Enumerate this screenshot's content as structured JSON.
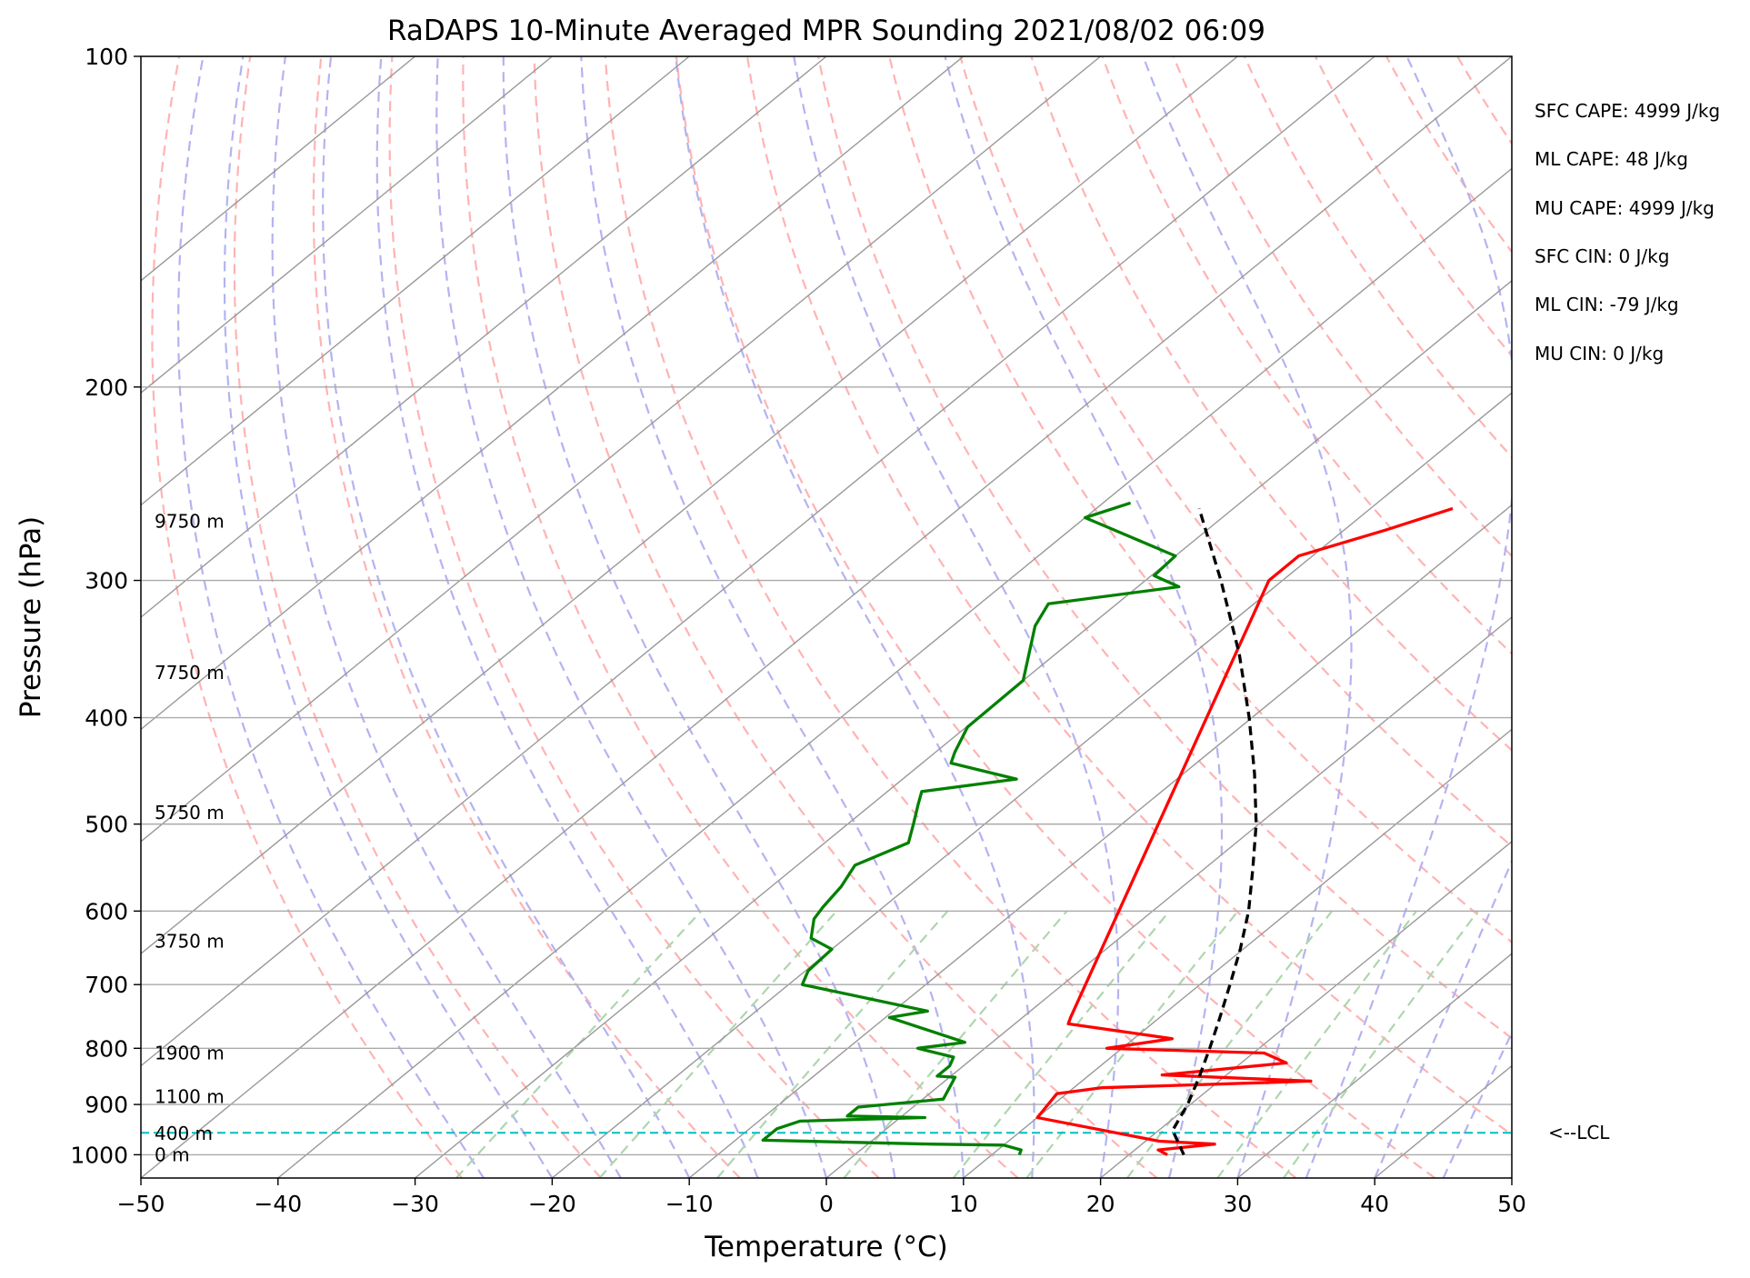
{
  "chart_data": {
    "type": "skew-t",
    "title": "RaDAPS 10-Minute Averaged MPR Sounding 2021/08/02 06:09",
    "xlabel": "Temperature (°C)",
    "ylabel": "Pressure (hPa)",
    "xlim": [
      -50,
      50
    ],
    "ylim": [
      1050,
      100
    ],
    "y_scale": "log",
    "grid": true,
    "x_ticks": [
      -50,
      -40,
      -30,
      -20,
      -10,
      0,
      10,
      20,
      30,
      40,
      50
    ],
    "x_tick_labels": [
      "−50",
      "−40",
      "−30",
      "−20",
      "−10",
      "0",
      "10",
      "20",
      "30",
      "40",
      "50"
    ],
    "y_ticks": [
      1000,
      900,
      800,
      700,
      600,
      500,
      400,
      300,
      200,
      100
    ],
    "y_tick_labels": [
      "1000",
      "900",
      "800",
      "700",
      "600",
      "500",
      "400",
      "300",
      "200",
      "100"
    ],
    "series": [
      {
        "color": "#ff0000",
        "points": [
          [
            1000,
            22.8
          ],
          [
            990,
            21.7
          ],
          [
            978,
            25.3
          ],
          [
            972,
            21.0
          ],
          [
            925,
            10.0
          ],
          [
            880,
            9.3
          ],
          [
            869,
            12.0
          ],
          [
            857,
            26.7
          ],
          [
            846,
            15.3
          ],
          [
            825,
            23.3
          ],
          [
            808,
            20.8
          ],
          [
            800,
            8.9
          ],
          [
            784,
            12.8
          ],
          [
            760,
            3.9
          ],
          [
            750,
            3.5
          ],
          [
            300,
            -21.0
          ],
          [
            285,
            -21.0
          ],
          [
            270,
            -17.0
          ],
          [
            258,
            -14.0
          ]
        ]
      },
      {
        "color": "#008000",
        "points": [
          [
            1000,
            12.0
          ],
          [
            990,
            11.7
          ],
          [
            980,
            10.0
          ],
          [
            978,
            4.6
          ],
          [
            970,
            -8.0
          ],
          [
            962,
            -8.0
          ],
          [
            947,
            -8.0
          ],
          [
            932,
            -7.0
          ],
          [
            925,
            1.8
          ],
          [
            922,
            -4.0
          ],
          [
            905,
            -4.0
          ],
          [
            890,
            1.5
          ],
          [
            850,
            0.4
          ],
          [
            848,
            -1.0
          ],
          [
            830,
            -1.0
          ],
          [
            815,
            -1.5
          ],
          [
            800,
            -4.9
          ],
          [
            790,
            -2.0
          ],
          [
            750,
            -9.7
          ],
          [
            740,
            -7.5
          ],
          [
            700,
            -19.0
          ],
          [
            680,
            -19.8
          ],
          [
            650,
            -20.0
          ],
          [
            635,
            -22.5
          ],
          [
            610,
            -24.0
          ],
          [
            595,
            -24.4
          ],
          [
            570,
            -24.9
          ],
          [
            545,
            -25.8
          ],
          [
            520,
            -23.9
          ],
          [
            500,
            -25.2
          ],
          [
            480,
            -26.6
          ],
          [
            467,
            -27.5
          ],
          [
            455,
            -21.7
          ],
          [
            440,
            -27.9
          ],
          [
            430,
            -28.6
          ],
          [
            408,
            -29.9
          ],
          [
            370,
            -30.0
          ],
          [
            330,
            -34.0
          ],
          [
            315,
            -35.0
          ],
          [
            304,
            -27.0
          ],
          [
            297,
            -29.8
          ],
          [
            285,
            -30.0
          ],
          [
            263,
            -40.0
          ],
          [
            255,
            -38.0
          ]
        ]
      },
      {
        "color": "#000000",
        "style": "dashed",
        "points": [
          [
            1000,
            24.0
          ],
          [
            950,
            21.0
          ],
          [
            900,
            19.8
          ],
          [
            850,
            18.2
          ],
          [
            800,
            16.4
          ],
          [
            750,
            14.4
          ],
          [
            700,
            12.2
          ],
          [
            650,
            9.8
          ],
          [
            600,
            7.0
          ],
          [
            550,
            3.6
          ],
          [
            500,
            -0.2
          ],
          [
            450,
            -4.8
          ],
          [
            400,
            -10.2
          ],
          [
            350,
            -16.6
          ],
          [
            300,
            -24.5
          ],
          [
            258,
            -32.5
          ]
        ]
      }
    ],
    "height_labels": [
      {
        "label": "0 m",
        "pressure": 1000
      },
      {
        "label": "400 m",
        "pressure": 956
      },
      {
        "label": "1100 m",
        "pressure": 885
      },
      {
        "label": "1900 m",
        "pressure": 808
      },
      {
        "label": "3750 m",
        "pressure": 639
      },
      {
        "label": "5750 m",
        "pressure": 488
      },
      {
        "label": "7750 m",
        "pressure": 364
      },
      {
        "label": "9750 m",
        "pressure": 265
      }
    ],
    "lcl": {
      "label": "<--LCL",
      "pressure": 955,
      "color": "#00bfbf"
    },
    "stats": [
      "SFC CAPE: 4999 J/kg",
      "ML CAPE: 48 J/kg",
      "MU CAPE: 4999 J/kg",
      "SFC CIN: 0 J/kg",
      "ML CIN: -79 J/kg",
      "MU CIN: 0 J/kg"
    ],
    "isotherm_color": "#999999",
    "dry_adiabat_color": "#ffb3b3",
    "moist_adiabat_color": "#b3b3f2",
    "mixing_ratio_color": "#aed6ae"
  }
}
